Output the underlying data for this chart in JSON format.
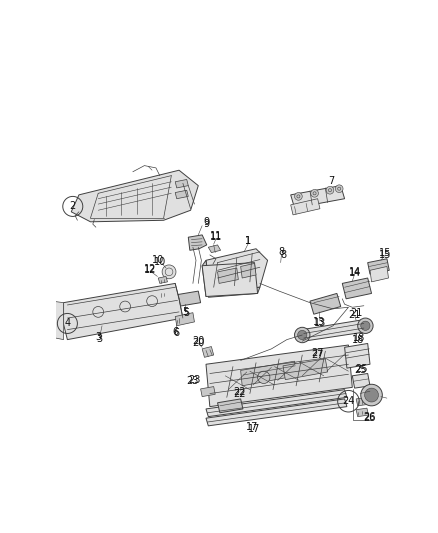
{
  "bg_color": "#ffffff",
  "line_color": "#404040",
  "label_color": "#111111",
  "fig_width": 4.38,
  "fig_height": 5.33,
  "dpi": 100,
  "gray_fill": "#c8c8c8",
  "light_gray": "#e0e0e0",
  "dark_gray": "#888888"
}
